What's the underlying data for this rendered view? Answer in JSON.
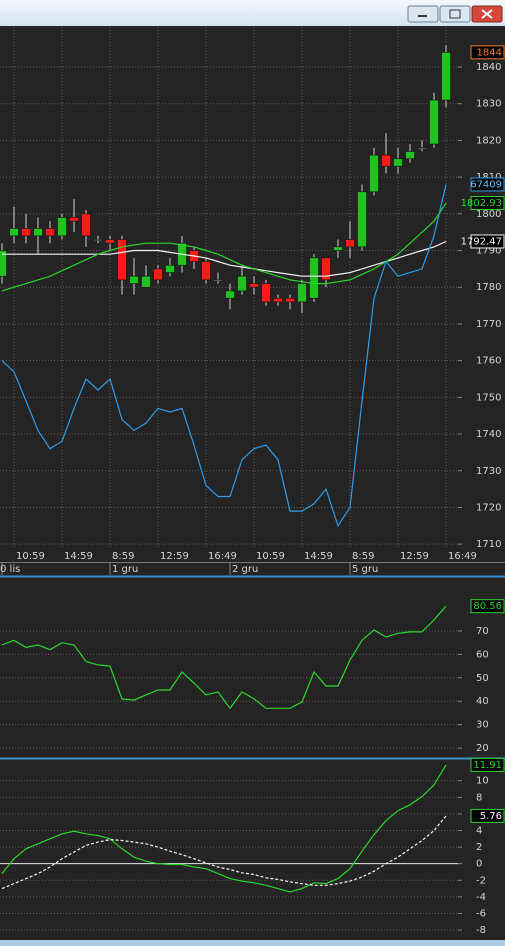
{
  "chart_data": [
    {
      "type": "candlestick",
      "categories": [
        null,
        "10:59",
        null,
        null,
        null,
        "14:59",
        null,
        null,
        null,
        "8:59",
        null,
        null,
        null,
        "12:59",
        null,
        null,
        null,
        "16:49",
        null,
        null,
        null,
        "10:59",
        null,
        null,
        null,
        "14:59",
        null,
        null,
        null,
        "8:59",
        null,
        null,
        null,
        "12:59",
        null,
        null,
        null,
        "16:49"
      ],
      "date_labels": [
        "0 lis",
        null,
        null,
        null,
        null,
        null,
        null,
        null,
        null,
        "1 gru",
        null,
        null,
        null,
        null,
        null,
        null,
        null,
        null,
        null,
        "2 gru",
        null,
        null,
        null,
        null,
        null,
        null,
        null,
        null,
        null,
        "5 gru",
        null,
        null,
        null,
        null,
        null,
        null,
        null,
        null
      ],
      "open": [
        1783,
        1794,
        1796,
        1794,
        1796,
        1794,
        1799,
        1800,
        1793,
        1793,
        1793,
        1781,
        1780,
        1785,
        1784,
        1786,
        1790,
        1787,
        1782,
        1777,
        1779,
        1781,
        1781,
        1777,
        1777,
        1776,
        1777,
        1788,
        1790,
        1793,
        1791,
        1806,
        1816,
        1813,
        1815,
        1818,
        1819,
        1831
      ],
      "high": [
        1792,
        1802,
        1800,
        1799,
        1798,
        1800,
        1804,
        1801,
        1794,
        1794,
        1794,
        1788,
        1786,
        1786,
        1788,
        1794,
        1791,
        1788,
        1784,
        1781,
        1786,
        1783,
        1782,
        1778,
        1778,
        1782,
        1789,
        1788,
        1793,
        1798,
        1808,
        1818,
        1822,
        1818,
        1819,
        1820,
        1833,
        1846
      ],
      "low": [
        1781,
        1792,
        1792,
        1789,
        1792,
        1793,
        1795,
        1791,
        1792,
        1790,
        1778,
        1778,
        1780,
        1781,
        1783,
        1784,
        1785,
        1781,
        1781,
        1774,
        1778,
        1778,
        1775,
        1775,
        1774,
        1773,
        1776,
        1780,
        1788,
        1788,
        1790,
        1805,
        1811,
        1811,
        1814,
        1817,
        1818,
        1829
      ],
      "close": [
        1790,
        1796,
        1794,
        1796,
        1794,
        1799,
        1798,
        1794,
        1793,
        1792,
        1782,
        1783,
        1783,
        1782,
        1786,
        1792,
        1787,
        1782,
        1782,
        1779,
        1783,
        1780,
        1776,
        1776,
        1776,
        1781,
        1788,
        1782,
        1791,
        1791,
        1806,
        1816,
        1813,
        1815,
        1817,
        1818,
        1831,
        1844
      ],
      "up_color": "#1fc21f",
      "down_color": "#ff1a1a",
      "last_color": "#f07a2a",
      "series": [
        {
          "color": "#f2f2f2",
          "values": [
            1789,
            1789,
            1789,
            1789,
            1789,
            1789,
            1789,
            1789,
            1789,
            1789,
            1789.5,
            1790,
            1790,
            1790,
            1789.5,
            1789,
            1788.5,
            1788,
            1787,
            1786,
            1785.5,
            1785,
            1784.5,
            1784,
            1783.5,
            1783,
            1783,
            1783,
            1783.5,
            1784,
            1785,
            1786,
            1787,
            1788,
            1789,
            1790,
            1791,
            1792.47
          ]
        },
        {
          "color": "#2ad62a",
          "values": [
            1779,
            1780,
            1781,
            1782,
            1783,
            1784.5,
            1786,
            1787.5,
            1789,
            1790,
            1791,
            1791.5,
            1792,
            1792,
            1792,
            1791.5,
            1791,
            1790,
            1789,
            1787.5,
            1786,
            1785,
            1784,
            1783,
            1782,
            1781.5,
            1781,
            1781,
            1781.5,
            1782,
            1783.5,
            1785,
            1787,
            1789,
            1792,
            1795,
            1798,
            1802.93
          ]
        },
        {
          "color": "#2f9be6",
          "values": [
            1760,
            1757,
            1749,
            1741,
            1736,
            1738,
            1747,
            1755,
            1752,
            1755,
            1744,
            1741,
            1743,
            1747,
            1746,
            1747,
            1737,
            1726,
            1723,
            1723,
            1733,
            1736,
            1737,
            1733,
            1719,
            1719,
            1721,
            1725,
            1715,
            1720,
            1749,
            1777,
            1787,
            1783,
            1784,
            1785,
            1794,
            1808
          ],
          "label": "67409"
        }
      ],
      "ylim": [
        1701.6,
        1850.9
      ],
      "yticks": [
        1710,
        1720,
        1730,
        1740,
        1750,
        1760,
        1770,
        1780,
        1790,
        1800,
        1810,
        1820,
        1830,
        1840
      ],
      "grid": true
    },
    {
      "type": "line",
      "series": [
        {
          "color": "#2ad62a",
          "values": [
            64,
            66,
            63,
            64,
            62,
            65,
            64,
            57,
            55.5,
            55,
            41,
            40.5,
            42.7,
            44.8,
            44.8,
            52.5,
            47.8,
            42.7,
            44,
            37,
            44,
            41,
            37,
            37,
            37,
            39.7,
            52.5,
            46.5,
            46.5,
            57.6,
            66,
            70.4,
            67.4,
            69,
            69.6,
            69.6,
            74.7,
            80.56
          ]
        }
      ],
      "ylim": [
        16.2,
        92.6
      ],
      "yticks": [
        20,
        30,
        40,
        50,
        60,
        70
      ],
      "grid": true
    },
    {
      "type": "line",
      "series": [
        {
          "color": "#2ad62a",
          "values": [
            -1.2,
            0.6,
            1.8,
            2.4,
            3,
            3.6,
            3.9,
            3.6,
            3.4,
            3,
            1.8,
            0.8,
            0.3,
            0,
            -0.1,
            -0.1,
            -0.4,
            -0.6,
            -1.2,
            -1.8,
            -2.1,
            -2.3,
            -2.6,
            -3,
            -3.4,
            -3,
            -2.3,
            -2.4,
            -1.8,
            -0.6,
            1.5,
            3.5,
            5.2,
            6.4,
            7.1,
            8.1,
            9.5,
            11.91
          ]
        },
        {
          "color": "#f2f2f2",
          "dashed": true,
          "values": [
            -3,
            -2.4,
            -1.8,
            -1.2,
            -0.4,
            0.6,
            1.4,
            2.2,
            2.6,
            2.9,
            2.8,
            2.6,
            2.4,
            2,
            1.5,
            1.1,
            0.6,
            0.1,
            -0.4,
            -0.7,
            -1.1,
            -1.3,
            -1.7,
            -1.9,
            -2.2,
            -2.4,
            -2.6,
            -2.6,
            -2.4,
            -2.1,
            -1.6,
            -0.9,
            0,
            0.8,
            1.8,
            2.8,
            4,
            5.76
          ]
        }
      ],
      "reference_line": 0,
      "ylim": [
        -9.2,
        12.5
      ],
      "yticks": [
        10,
        8,
        6,
        4,
        2,
        0,
        -2,
        -4,
        -6,
        -8
      ],
      "grid": true
    }
  ]
}
